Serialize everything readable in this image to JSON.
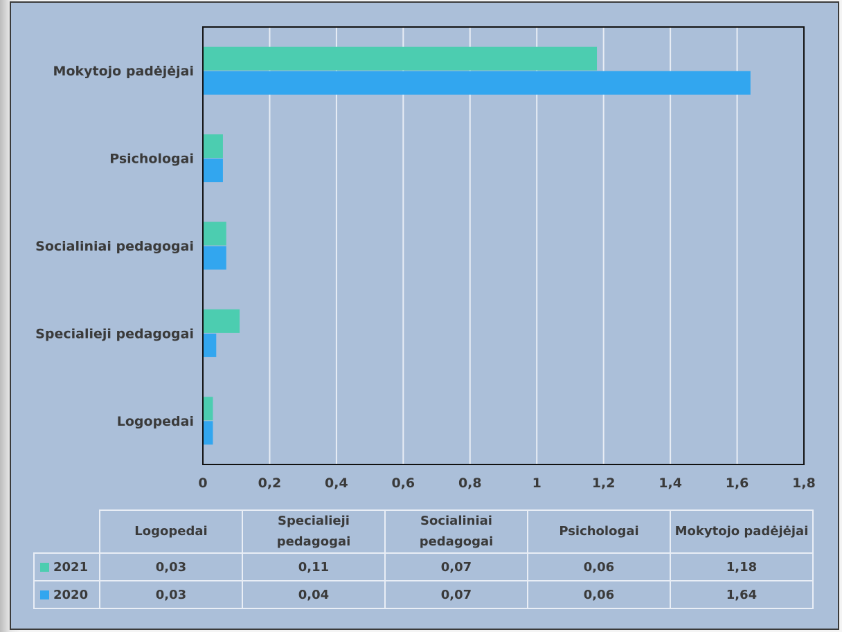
{
  "chart_data": {
    "type": "bar",
    "orientation": "horizontal",
    "categories": [
      "Logopedai",
      "Specialieji pedagogai",
      "Socialiniai pedagogai",
      "Psichologai",
      "Mokytojo padėjėjai"
    ],
    "table_headers": [
      "Logopedai",
      "Specialieji pedagogai",
      "Socialiniai pedagogai",
      "Psichologai",
      "Mokytojo padėjėjai"
    ],
    "series": [
      {
        "name": "2021",
        "color": "#4ccdb0",
        "values": [
          0.03,
          0.11,
          0.07,
          0.06,
          1.18
        ],
        "labels": [
          "0,03",
          "0,11",
          "0,07",
          "0,06",
          "1,18"
        ]
      },
      {
        "name": "2020",
        "color": "#32a6ef",
        "values": [
          0.03,
          0.04,
          0.07,
          0.06,
          1.64
        ],
        "labels": [
          "0,03",
          "0,04",
          "0,07",
          "0,06",
          "1,64"
        ]
      }
    ],
    "xlim": [
      0,
      1.8
    ],
    "xticks": [
      "0",
      "0,2",
      "0,4",
      "0,6",
      "0,8",
      "1",
      "1,2",
      "1,4",
      "1,6",
      "1,8"
    ],
    "grid": true,
    "legend": "data-table-below"
  }
}
